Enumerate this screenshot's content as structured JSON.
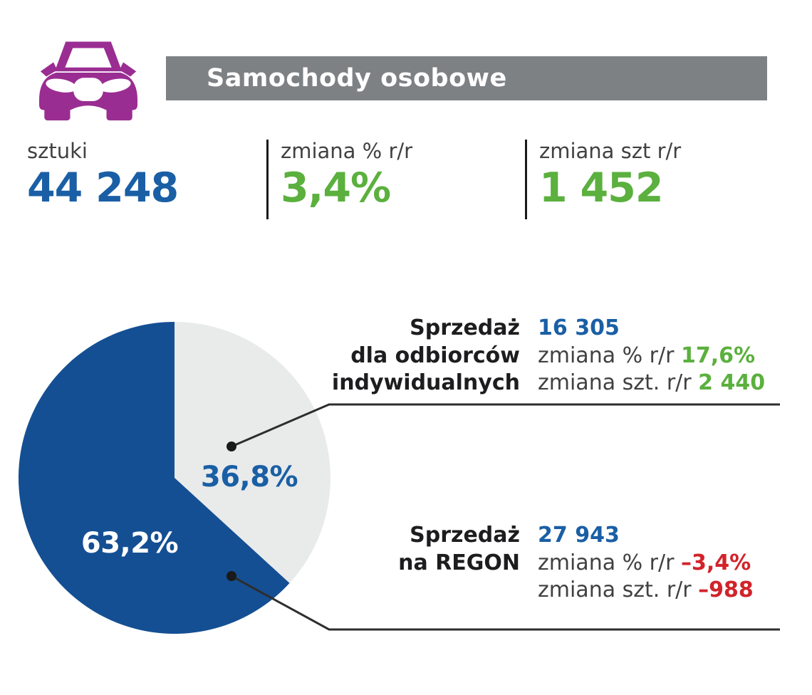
{
  "colors": {
    "brand_purple": "#9A2D92",
    "banner_gray": "#7E8184",
    "text_blue": "#1A5FA5",
    "pie_blue": "#144F93",
    "pie_light_gray": "#E9EAEA",
    "positive_green": "#5BB03E",
    "negative_red": "#D2232A",
    "label_dark": "#414042",
    "callout_line": "#2D2D2D"
  },
  "header": {
    "icon": "car-icon",
    "title": "Samochody osobowe"
  },
  "stats": [
    {
      "label": "sztuki",
      "value": "44 248"
    },
    {
      "label": "zmiana % r/r",
      "value": "3,4%"
    },
    {
      "label": "zmiana szt r/r",
      "value": "1 452"
    }
  ],
  "chart_data": {
    "type": "pie",
    "start_angle_deg": 0,
    "direction": "clockwise",
    "legend": "none",
    "labels_inside": true,
    "slices": [
      {
        "name": "Sprzedaż dla odbiorców indywidualnych",
        "pct": 36.8,
        "pct_label": "36,8%",
        "units": 16305,
        "color": "#E9EAEA"
      },
      {
        "name": "Sprzedaż na REGON",
        "pct": 63.2,
        "pct_label": "63,2%",
        "units": 27943,
        "color": "#144F93"
      }
    ]
  },
  "annotations": [
    {
      "title_lines": [
        "Sprzedaż",
        "dla odbiorców",
        "indywidualnych"
      ],
      "value": "16 305",
      "rows": [
        {
          "label": "zmiana % r/r",
          "value": "17,6%"
        },
        {
          "label": "zmiana szt. r/r",
          "value": "2 440"
        }
      ]
    },
    {
      "title_lines": [
        "Sprzedaż",
        "na REGON"
      ],
      "value": "27 943",
      "rows": [
        {
          "label": "zmiana % r/r",
          "value": "–3,4%"
        },
        {
          "label": "zmiana szt. r/r",
          "value": "–988"
        }
      ]
    }
  ]
}
